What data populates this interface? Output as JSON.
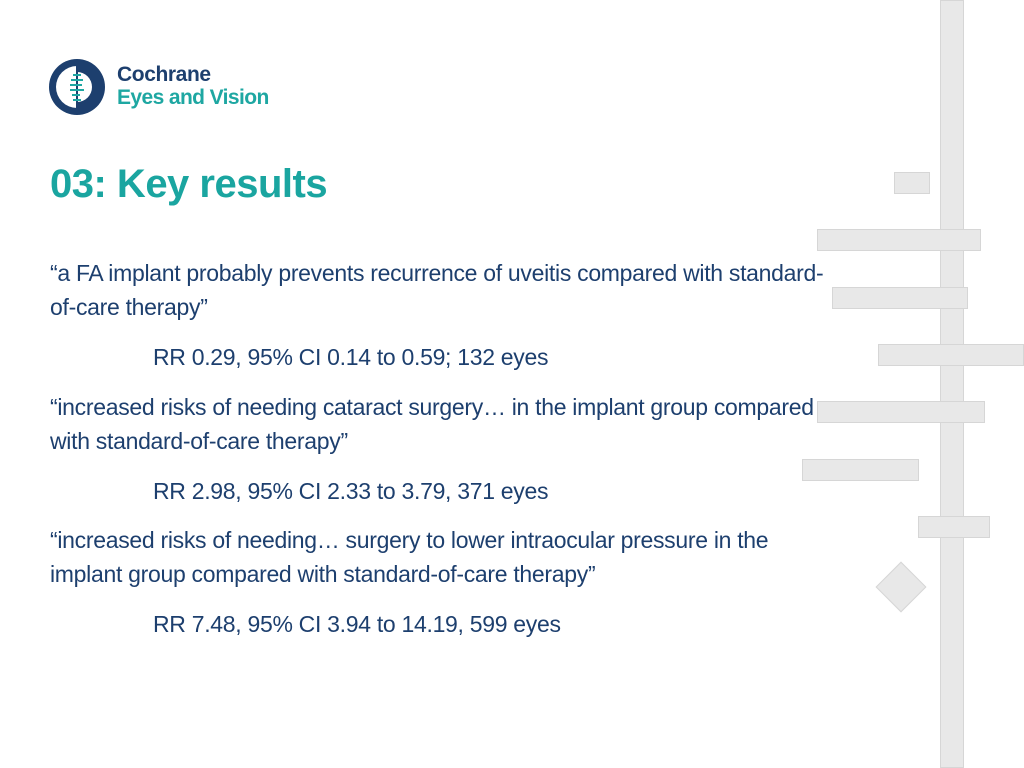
{
  "logo": {
    "line1": "Cochrane",
    "line2": "Eyes and Vision",
    "icon": "cochrane-logo-icon",
    "colors": {
      "navy": "#1d3f6e",
      "teal": "#1ea7a2"
    }
  },
  "title": "03: Key results",
  "results": [
    {
      "quote": "“a FA implant probably prevents recurrence of uveitis compared with standard-of-care therapy”",
      "stat": "RR 0.29, 95% CI 0.14 to 0.59; 132 eyes"
    },
    {
      "quote": "“increased risks of needing cataract surgery… in the implant group compared with standard-of-care therapy”",
      "stat": "RR 2.98, 95% CI 2.33 to 3.79, 371 eyes"
    },
    {
      "quote": "“increased risks of needing… surgery to lower intraocular pressure in the implant group compared with standard-of-care therapy”",
      "stat": "RR 7.48, 95% CI 3.94 to 14.19, 599 eyes"
    }
  ],
  "colors": {
    "title": "#1aa5a0",
    "body": "#1d3f6e",
    "decoration": "#e8e8e8"
  }
}
